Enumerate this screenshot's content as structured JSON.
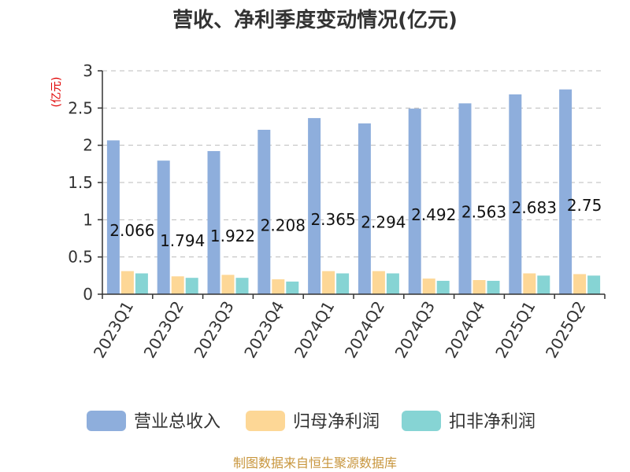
{
  "chart_data": {
    "type": "bar",
    "title": "营收、净利季度变动情况(亿元)",
    "ylabel": "(亿元)",
    "xlabel": "",
    "categories": [
      "2023Q1",
      "2023Q2",
      "2023Q3",
      "2023Q4",
      "2024Q1",
      "2024Q2",
      "2024Q3",
      "2024Q4",
      "2025Q1",
      "2025Q2"
    ],
    "ylim": [
      0,
      3
    ],
    "yticks": [
      0,
      0.5,
      1,
      1.5,
      2,
      2.5,
      3
    ],
    "ytick_labels": [
      "0",
      "0.5",
      "1",
      "1.5",
      "2",
      "2.5",
      "3"
    ],
    "grid": true,
    "legend_position": "bottom",
    "series": [
      {
        "name": "营业总收入",
        "color": "#8eaedc",
        "values": [
          2.066,
          1.794,
          1.922,
          2.208,
          2.365,
          2.294,
          2.492,
          2.563,
          2.683,
          2.75
        ],
        "labels": [
          "2.066",
          "1.794",
          "1.922",
          "2.208",
          "2.365",
          "2.294",
          "2.492",
          "2.563",
          "2.683",
          "2.75"
        ]
      },
      {
        "name": "归母净利润",
        "color": "#fdd796",
        "values": [
          0.31,
          0.24,
          0.26,
          0.2,
          0.31,
          0.31,
          0.21,
          0.19,
          0.28,
          0.27
        ]
      },
      {
        "name": "扣非净利润",
        "color": "#86d4d4",
        "values": [
          0.28,
          0.22,
          0.22,
          0.17,
          0.28,
          0.28,
          0.18,
          0.18,
          0.25,
          0.25
        ]
      }
    ]
  },
  "source": "制图数据来自恒生聚源数据库"
}
